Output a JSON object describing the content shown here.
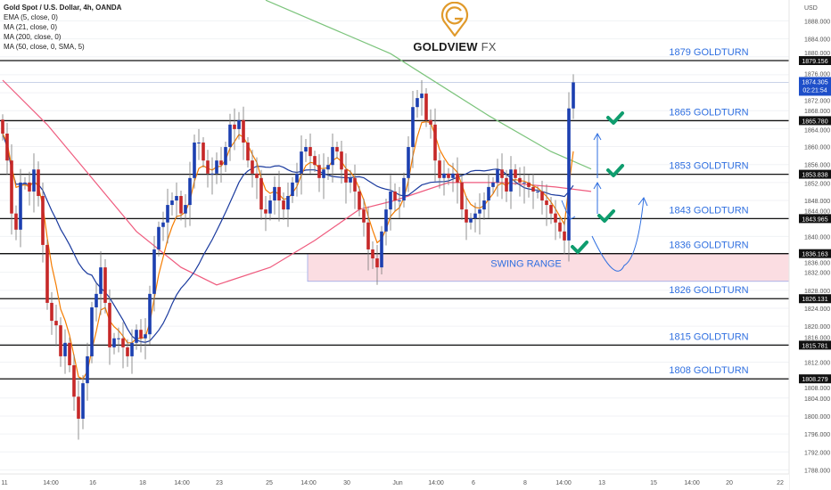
{
  "chart_data": {
    "type": "candlestick",
    "title": "Gold Spot / U.S. Dollar, 4h, OANDA",
    "indicators": [
      "EMA (5, close, 0)",
      "MA (21, close, 0)",
      "MA (200, close, 0)",
      "MA (50, close, 0, SMA, 5)"
    ],
    "currency": "USD",
    "ylim": [
      1786,
      1890
    ],
    "y_ticks": [
      "1788.000",
      "1792.000",
      "1796.000",
      "1800.000",
      "1804.000",
      "1808.000",
      "1812.000",
      "1816.000",
      "1820.000",
      "1824.000",
      "1828.000",
      "1832.000",
      "1836.000",
      "1840.000",
      "1844.000",
      "1848.000",
      "1852.000",
      "1856.000",
      "1860.000",
      "1864.000",
      "1868.000",
      "1872.000",
      "1876.000",
      "1880.000",
      "1884.000",
      "1888.000"
    ],
    "x_ticks": [
      "11",
      "14:00",
      "16",
      "18",
      "14:00",
      "23",
      "25",
      "14:00",
      "30",
      "Jun",
      "14:00",
      "6",
      "8",
      "14:00",
      "13",
      "15",
      "14:00",
      "20",
      "22"
    ],
    "first_open": 1866.0,
    "closes": [
      1862.9,
      1856.9,
      1845.1,
      1841.5,
      1852.0,
      1852.0,
      1850.0,
      1854.9,
      1849.0,
      1838.1,
      1825.2,
      1821.2,
      1820.2,
      1813.3,
      1816.3,
      1811.3,
      1804.3,
      1799.4,
      1807.3,
      1813.3,
      1824.2,
      1827.2,
      1833.1,
      1825.2,
      1815.3,
      1817.3,
      1817.3,
      1815.3,
      1813.3,
      1816.3,
      1819.2,
      1817.3,
      1818.2,
      1827.2,
      1837.1,
      1842.1,
      1843.1,
      1847.0,
      1848.0,
      1849.0,
      1845.1,
      1847.0,
      1853.0,
      1860.9,
      1860.9,
      1856.9,
      1854.0,
      1854.0,
      1856.9,
      1855.9,
      1859.9,
      1864.9,
      1863.9,
      1865.9,
      1860.9,
      1856.9,
      1854.0,
      1853.0,
      1846.0,
      1845.1,
      1848.0,
      1851.0,
      1848.0,
      1846.0,
      1849.0,
      1852.0,
      1854.0,
      1858.9,
      1859.9,
      1857.9,
      1855.9,
      1853.0,
      1854.9,
      1855.9,
      1859.9,
      1858.9,
      1854.9,
      1852.0,
      1853.0,
      1850.0,
      1846.0,
      1843.1,
      1837.1,
      1835.1,
      1833.1,
      1841.1,
      1846.0,
      1850.0,
      1848.0,
      1848.0,
      1853.0,
      1859.9,
      1868.8,
      1870.8,
      1871.8,
      1865.9,
      1864.9,
      1856.9,
      1853.0,
      1854.0,
      1853.0,
      1854.0,
      1852.0,
      1846.0,
      1843.1,
      1844.0,
      1845.1,
      1846.0,
      1848.0,
      1851.0,
      1852.0,
      1854.9,
      1853.0,
      1850.0,
      1854.9,
      1853.0,
      1852.0,
      1852.0,
      1851.0,
      1850.0,
      1850.0,
      1848.0,
      1847.0,
      1845.1,
      1843.1,
      1841.1,
      1839.1,
      1868.5,
      1874.3
    ],
    "ma200_points": [
      [
        59,
        1892.6
      ],
      [
        87,
        1880.7
      ],
      [
        109,
        1866.9
      ],
      [
        123,
        1858.9
      ],
      [
        132,
        1855.0
      ]
    ],
    "ma50_points": [
      [
        0,
        1874.8
      ],
      [
        10,
        1864.9
      ],
      [
        20,
        1853.0
      ],
      [
        30,
        1841.1
      ],
      [
        40,
        1833.1
      ],
      [
        48,
        1829.2
      ],
      [
        60,
        1833.1
      ],
      [
        70,
        1839.1
      ],
      [
        80,
        1846.0
      ],
      [
        88,
        1848.0
      ],
      [
        100,
        1852.0
      ],
      [
        112,
        1852.0
      ],
      [
        124,
        1851.0
      ],
      [
        132,
        1850.0
      ]
    ],
    "levels": [
      {
        "price": 1879.156,
        "price_label": "1879.156",
        "label": "1879 GOLDTURN"
      },
      {
        "price": 1865.78,
        "price_label": "1865.780",
        "label": "1865 GOLDTURN"
      },
      {
        "price": 1853.838,
        "price_label": "1853.838",
        "label": "1853 GOLDTURN"
      },
      {
        "price": 1843.965,
        "price_label": "1843.965",
        "label": "1843 GOLDTURN"
      },
      {
        "price": 1836.163,
        "price_label": "1836.163",
        "label": "1836 GOLDTURN"
      },
      {
        "price": 1826.131,
        "price_label": "1826.131",
        "label": "1826 GOLDTURN"
      },
      {
        "price": 1815.781,
        "price_label": "1815.781",
        "label": "1815 GOLDTURN"
      },
      {
        "price": 1808.279,
        "price_label": "1808.279",
        "label": "1808 GOLDTURN"
      }
    ],
    "swing_range": {
      "label": "SWING RANGE",
      "from": 1830.0,
      "to": 1836.163
    },
    "current_price": {
      "value": 1874.305,
      "label": "1874.305",
      "countdown": "02:21:54"
    },
    "colors": {
      "up": "#1c3fb0",
      "down": "#c62828",
      "ema5": "#f57c00",
      "ma21": "#1a3a9e",
      "ma200": "#7cc47c",
      "ma50": "#ef5b7e",
      "level": "#111111",
      "annotation": "#2f6fe0",
      "check": "#0f9d6e",
      "swing_fill": "#fbdde2",
      "current": "#1e4fc9"
    }
  },
  "logo": {
    "brand": "GOLDVIEW",
    "suffix": "FX",
    "accent": "#e09a2b"
  }
}
